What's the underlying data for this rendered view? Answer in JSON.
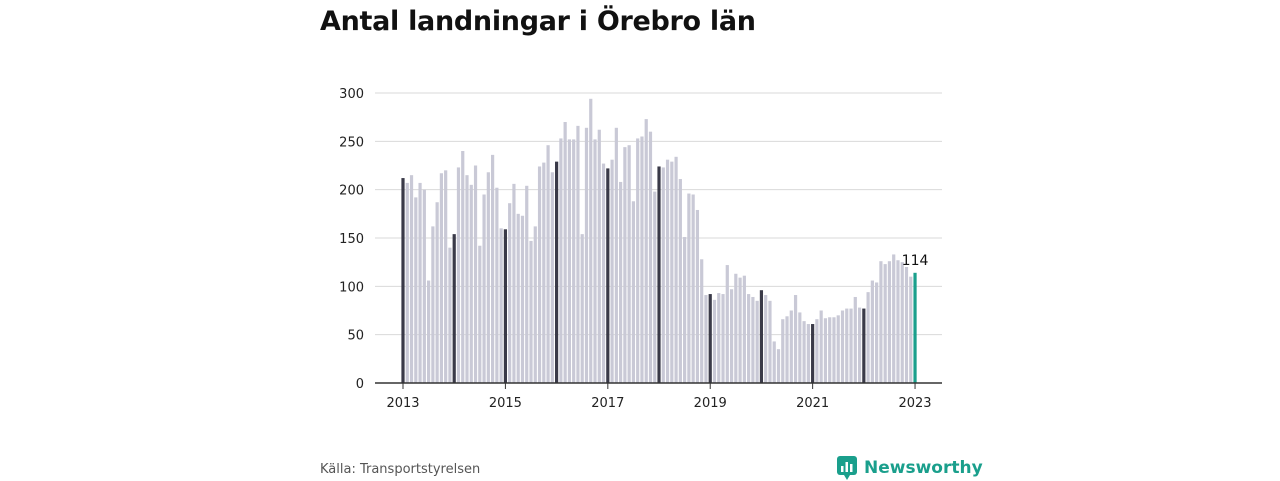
{
  "title": "Antal landningar i Örebro län",
  "source": "Källa: Transportstyrelsen",
  "brand": {
    "name": "Newsworthy",
    "icon": "newsworthy-logo-icon",
    "color": "#1a9f8c"
  },
  "colors": {
    "bar": "#c9c9d6",
    "january_bar": "#3a3a48",
    "last_bar": "#1a9f8c",
    "grid": "#d9d9d9",
    "axis": "#333333"
  },
  "chart_data": {
    "type": "bar",
    "title": "Antal landningar i Örebro län",
    "xlabel": "",
    "ylabel": "",
    "ylim": [
      0,
      300
    ],
    "yticks": [
      "0",
      "50",
      "100",
      "150",
      "200",
      "250",
      "300"
    ],
    "xticks": [
      "2013",
      "2015",
      "2017",
      "2019",
      "2021",
      "2023"
    ],
    "grid": true,
    "start": "2013-01",
    "highlight": "january bars dark; latest month teal with value label",
    "last_label": "114",
    "values": [
      212,
      207,
      215,
      192,
      207,
      200,
      106,
      162,
      187,
      217,
      220,
      140,
      154,
      223,
      240,
      215,
      205,
      225,
      142,
      195,
      218,
      236,
      202,
      160,
      159,
      186,
      206,
      175,
      173,
      204,
      147,
      162,
      224,
      228,
      246,
      218,
      229,
      253,
      270,
      252,
      252,
      266,
      154,
      264,
      294,
      252,
      262,
      227,
      222,
      231,
      264,
      208,
      244,
      246,
      188,
      253,
      255,
      273,
      260,
      198,
      224,
      223,
      231,
      229,
      234,
      211,
      151,
      196,
      195,
      179,
      128,
      91,
      92,
      86,
      93,
      92,
      122,
      97,
      113,
      109,
      111,
      92,
      89,
      85,
      96,
      91,
      85,
      43,
      35,
      66,
      69,
      75,
      91,
      73,
      64,
      61,
      61,
      66,
      75,
      67,
      68,
      68,
      70,
      75,
      77,
      77,
      89,
      78,
      77,
      94,
      106,
      104,
      126,
      123,
      126,
      133,
      127,
      125,
      120,
      110,
      114
    ]
  }
}
